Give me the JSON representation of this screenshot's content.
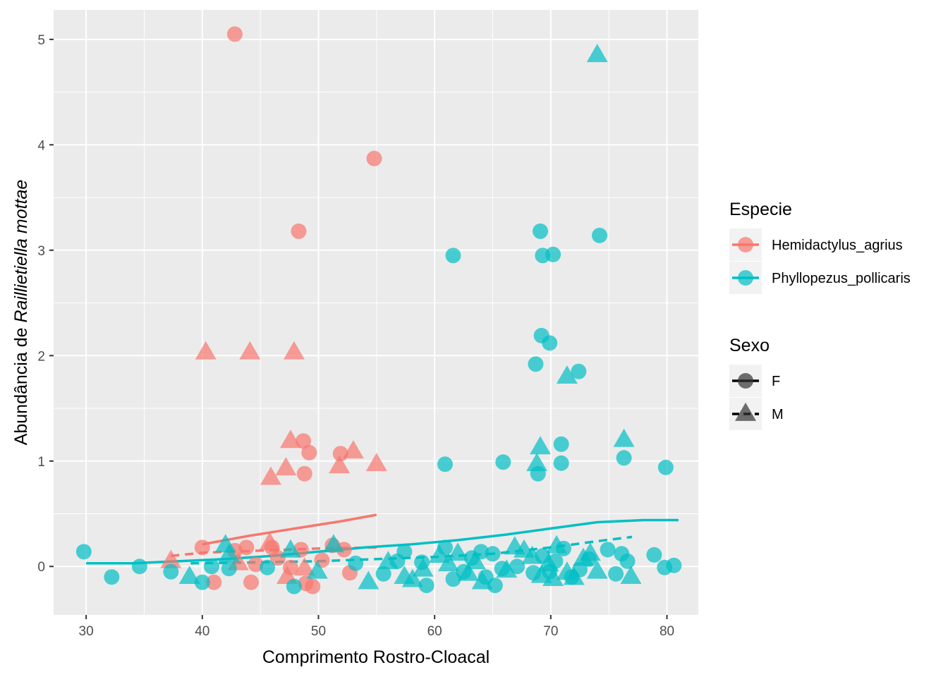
{
  "chart_data": {
    "type": "scatter",
    "xlabel": "Comprimento Rostro-Cloacal",
    "ylabel_prefix": "Abundância de ",
    "ylabel_italic": "Raillietiella mottae",
    "xlim": [
      27.2,
      82.7
    ],
    "ylim": [
      -0.46,
      5.28
    ],
    "x_ticks": [
      30,
      40,
      50,
      60,
      70,
      80
    ],
    "y_ticks": [
      0,
      1,
      2,
      3,
      4,
      5
    ],
    "grid": true,
    "legend_position": "right",
    "legends": {
      "color": {
        "title": "Especie",
        "entries": [
          {
            "label": "Hemidactylus_agrius",
            "color": "#F8766D"
          },
          {
            "label": "Phyllopezus_pollicaris",
            "color": "#00BFC4"
          }
        ]
      },
      "shape": {
        "title": "Sexo",
        "entries": [
          {
            "label": "F",
            "shape": "circle",
            "line": "solid"
          },
          {
            "label": "M",
            "shape": "triangle",
            "line": "dashed"
          }
        ]
      }
    },
    "series": [
      {
        "name": "Hemidactylus_agrius",
        "sex": "F",
        "color": "#F8766D",
        "shape": "circle",
        "points": [
          [
            42.8,
            5.05
          ],
          [
            54.8,
            3.87
          ],
          [
            48.3,
            3.18
          ],
          [
            48.7,
            1.19
          ],
          [
            49.2,
            1.08
          ],
          [
            48.8,
            0.88
          ],
          [
            51.9,
            1.07
          ],
          [
            40.0,
            0.18
          ],
          [
            41.0,
            -0.15
          ],
          [
            42.8,
            0.15
          ],
          [
            43.8,
            0.18
          ],
          [
            44.2,
            -0.15
          ],
          [
            46.0,
            0.18
          ],
          [
            47.6,
            -0.01
          ],
          [
            48.5,
            0.16
          ],
          [
            48.9,
            -0.16
          ],
          [
            49.5,
            -0.19
          ],
          [
            51.2,
            0.2
          ],
          [
            52.2,
            0.16
          ],
          [
            52.7,
            -0.06
          ],
          [
            46.5,
            0.08
          ],
          [
            44.6,
            0.02
          ],
          [
            50.3,
            0.06
          ]
        ]
      },
      {
        "name": "Hemidactylus_agrius",
        "sex": "M",
        "color": "#F8766D",
        "shape": "triangle",
        "points": [
          [
            40.3,
            2.03
          ],
          [
            44.1,
            2.03
          ],
          [
            47.9,
            2.03
          ],
          [
            47.6,
            1.19
          ],
          [
            53.0,
            1.09
          ],
          [
            55.0,
            0.97
          ],
          [
            51.8,
            0.95
          ],
          [
            47.2,
            0.93
          ],
          [
            45.9,
            0.84
          ],
          [
            37.3,
            0.05
          ],
          [
            45.8,
            0.22
          ],
          [
            47.3,
            -0.1
          ],
          [
            48.8,
            -0.02
          ],
          [
            43.1,
            0.03
          ]
        ]
      },
      {
        "name": "Phyllopezus_pollicaris",
        "sex": "F",
        "color": "#00BFC4",
        "shape": "circle",
        "points": [
          [
            61.6,
            2.95
          ],
          [
            69.1,
            3.18
          ],
          [
            74.2,
            3.14
          ],
          [
            69.3,
            2.95
          ],
          [
            70.2,
            2.96
          ],
          [
            69.2,
            2.19
          ],
          [
            69.9,
            2.12
          ],
          [
            68.7,
            1.92
          ],
          [
            72.4,
            1.85
          ],
          [
            60.9,
            0.97
          ],
          [
            65.9,
            0.99
          ],
          [
            70.9,
            1.16
          ],
          [
            70.9,
            0.98
          ],
          [
            68.9,
            0.88
          ],
          [
            76.3,
            1.03
          ],
          [
            79.9,
            0.94
          ],
          [
            29.8,
            0.14
          ],
          [
            32.2,
            -0.1
          ],
          [
            34.6,
            0.0
          ],
          [
            37.3,
            -0.05
          ],
          [
            40.0,
            -0.15
          ],
          [
            40.8,
            0.0
          ],
          [
            42.3,
            -0.02
          ],
          [
            45.6,
            -0.01
          ],
          [
            47.9,
            -0.19
          ],
          [
            53.2,
            0.03
          ],
          [
            55.6,
            -0.07
          ],
          [
            56.8,
            0.05
          ],
          [
            57.4,
            0.14
          ],
          [
            58.9,
            0.04
          ],
          [
            59.3,
            -0.18
          ],
          [
            60.9,
            0.18
          ],
          [
            61.6,
            -0.12
          ],
          [
            62.5,
            -0.05
          ],
          [
            63.2,
            0.08
          ],
          [
            64.4,
            -0.1
          ],
          [
            65.0,
            0.12
          ],
          [
            65.2,
            -0.18
          ],
          [
            65.8,
            -0.02
          ],
          [
            68.5,
            -0.06
          ],
          [
            69.3,
            0.1
          ],
          [
            69.9,
            -0.05
          ],
          [
            70.4,
            0.05
          ],
          [
            71.1,
            0.17
          ],
          [
            72.5,
            -0.03
          ],
          [
            73.3,
            0.07
          ],
          [
            74.9,
            0.16
          ],
          [
            76.1,
            0.12
          ],
          [
            75.6,
            -0.07
          ],
          [
            76.6,
            0.05
          ],
          [
            78.9,
            0.11
          ],
          [
            79.8,
            -0.01
          ],
          [
            80.6,
            0.01
          ],
          [
            64.0,
            0.14
          ],
          [
            67.1,
            0.0
          ],
          [
            71.8,
            -0.1
          ]
        ]
      },
      {
        "name": "Phyllopezus_pollicaris",
        "sex": "M",
        "color": "#00BFC4",
        "shape": "triangle",
        "points": [
          [
            74.0,
            4.85
          ],
          [
            71.4,
            1.8
          ],
          [
            69.1,
            1.13
          ],
          [
            68.8,
            0.97
          ],
          [
            76.3,
            1.2
          ],
          [
            38.9,
            -0.1
          ],
          [
            42.0,
            0.2
          ],
          [
            42.3,
            0.11
          ],
          [
            47.6,
            0.15
          ],
          [
            49.9,
            -0.05
          ],
          [
            51.3,
            0.2
          ],
          [
            54.3,
            -0.15
          ],
          [
            56.0,
            0.04
          ],
          [
            57.4,
            -0.1
          ],
          [
            58.1,
            -0.13
          ],
          [
            60.4,
            0.1
          ],
          [
            61.2,
            0.02
          ],
          [
            62.0,
            0.12
          ],
          [
            62.9,
            -0.07
          ],
          [
            63.5,
            0.04
          ],
          [
            64.1,
            -0.15
          ],
          [
            66.2,
            -0.04
          ],
          [
            67.7,
            0.15
          ],
          [
            68.4,
            0.09
          ],
          [
            69.2,
            -0.09
          ],
          [
            69.8,
            0.02
          ],
          [
            70.5,
            0.19
          ],
          [
            71.4,
            -0.06
          ],
          [
            72.0,
            -0.11
          ],
          [
            72.8,
            0.07
          ],
          [
            73.4,
            0.12
          ],
          [
            74.0,
            -0.05
          ],
          [
            76.9,
            -0.1
          ],
          [
            70.2,
            -0.12
          ],
          [
            66.9,
            0.18
          ],
          [
            59.0,
            -0.03
          ]
        ]
      }
    ],
    "trend_lines": [
      {
        "name": "Hemidactylus_agrius",
        "sex": "F",
        "color": "#F8766D",
        "dash": "solid",
        "points": [
          [
            40.0,
            0.21
          ],
          [
            44.0,
            0.29
          ],
          [
            48.0,
            0.36
          ],
          [
            52.0,
            0.43
          ],
          [
            55.0,
            0.49
          ]
        ]
      },
      {
        "name": "Hemidactylus_agrius",
        "sex": "M",
        "color": "#F8766D",
        "dash": "dashed",
        "points": [
          [
            37.3,
            0.1
          ],
          [
            40.0,
            0.13
          ],
          [
            45.0,
            0.15
          ],
          [
            50.0,
            0.17
          ],
          [
            55.0,
            0.18
          ]
        ]
      },
      {
        "name": "Phyllopezus_pollicaris",
        "sex": "F",
        "color": "#00BFC4",
        "dash": "solid",
        "points": [
          [
            30.0,
            0.03
          ],
          [
            34.0,
            0.03
          ],
          [
            38.0,
            0.05
          ],
          [
            42.0,
            0.07
          ],
          [
            46.0,
            0.1
          ],
          [
            50.0,
            0.14
          ],
          [
            54.0,
            0.18
          ],
          [
            58.0,
            0.21
          ],
          [
            62.0,
            0.25
          ],
          [
            66.0,
            0.3
          ],
          [
            70.0,
            0.36
          ],
          [
            74.0,
            0.42
          ],
          [
            78.0,
            0.44
          ],
          [
            81.0,
            0.44
          ]
        ]
      },
      {
        "name": "Phyllopezus_pollicaris",
        "sex": "M",
        "color": "#00BFC4",
        "dash": "dashed",
        "points": [
          [
            39.0,
            0.03
          ],
          [
            45.0,
            0.04
          ],
          [
            50.0,
            0.05
          ],
          [
            55.0,
            0.07
          ],
          [
            60.0,
            0.09
          ],
          [
            65.0,
            0.12
          ],
          [
            70.0,
            0.18
          ],
          [
            74.0,
            0.24
          ],
          [
            77.0,
            0.28
          ]
        ]
      }
    ]
  }
}
